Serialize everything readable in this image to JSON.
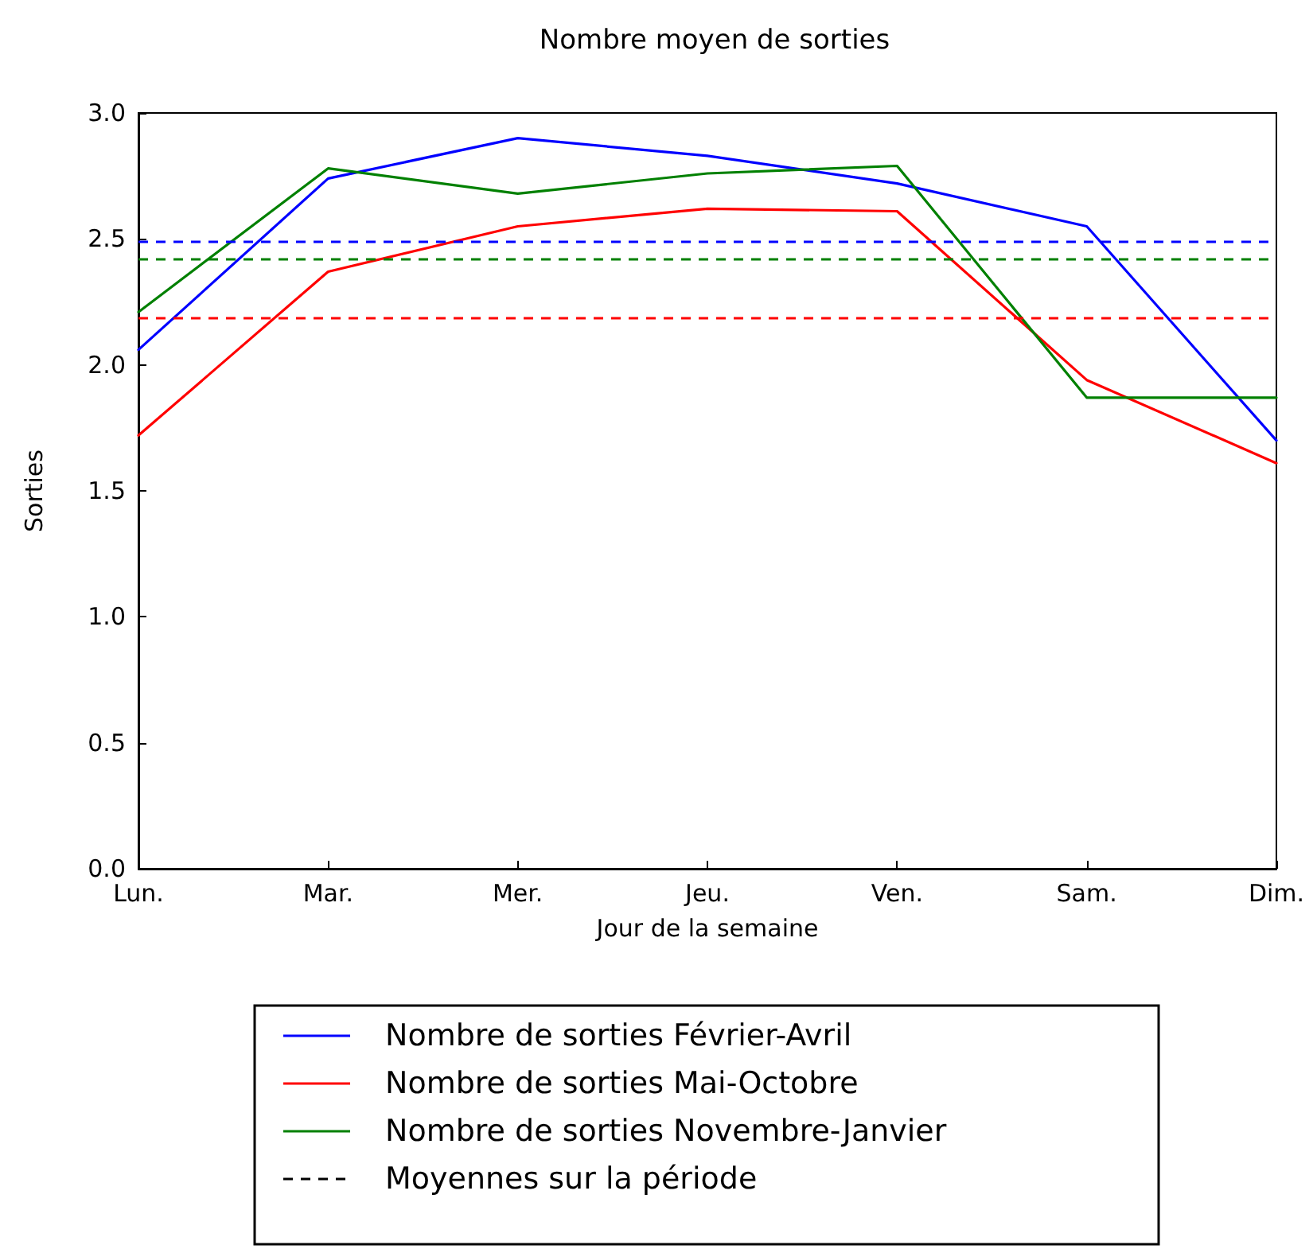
{
  "chart_data": {
    "type": "line",
    "title": "Nombre moyen de sorties",
    "xlabel": "Jour de la semaine",
    "ylabel": "Sorties",
    "categories": [
      "Lun.",
      "Mar.",
      "Mer.",
      "Jeu.",
      "Ven.",
      "Sam.",
      "Dim."
    ],
    "series": [
      {
        "name": "Nombre de sorties Février-Avril",
        "color": "#0000ff",
        "values": [
          2.06,
          2.74,
          2.9,
          2.83,
          2.72,
          2.55,
          1.7
        ]
      },
      {
        "name": "Nombre de sorties Mai-Octobre",
        "color": "#ff0000",
        "values": [
          1.72,
          2.37,
          2.55,
          2.62,
          2.61,
          1.94,
          1.61
        ]
      },
      {
        "name": "Nombre de sorties Novembre-Janvier",
        "color": "#008000",
        "values": [
          2.21,
          2.78,
          2.68,
          2.76,
          2.79,
          1.87,
          1.87
        ]
      }
    ],
    "ref_lines": [
      {
        "axis": "y",
        "value": 2.49,
        "color": "#0000ff",
        "line_style": "dashed"
      },
      {
        "axis": "y",
        "value": 2.19,
        "color": "#ff0000",
        "line_style": "dashed"
      },
      {
        "axis": "y",
        "value": 2.42,
        "color": "#008000",
        "line_style": "dashed"
      }
    ],
    "annotations": [
      "Moyennes sur la période"
    ],
    "ylim": [
      0,
      3
    ],
    "yticks": [
      {
        "value": 0,
        "label": "0.0"
      },
      0.5,
      {
        "value": 1,
        "label": "1.0"
      },
      1.5,
      {
        "value": 2,
        "label": "2.0"
      },
      2.5,
      {
        "value": 3,
        "label": "3.0"
      }
    ],
    "grid": false,
    "legend": "bottom",
    "marker": "none",
    "line_style": "solid"
  }
}
